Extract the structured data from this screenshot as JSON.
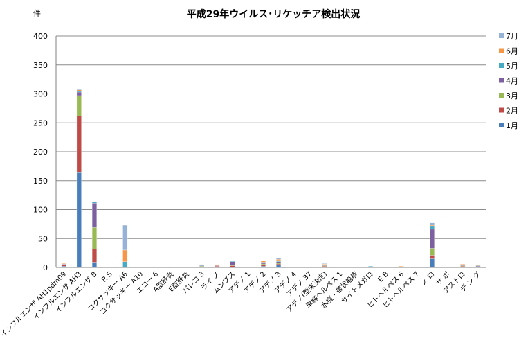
{
  "chart_data": {
    "type": "bar",
    "stacked": true,
    "title": "平成29年ウイルス･リケッチア検出状況",
    "ylabel": "件",
    "ylim": [
      0,
      400
    ],
    "yticks": [
      0,
      50,
      100,
      150,
      200,
      250,
      300,
      350,
      400
    ],
    "grid": true,
    "legend_position": "right",
    "categories": [
      "インフルエンザ AH1pdm09",
      "インフルエンザ AH3",
      "インフルエンザ B",
      "R S",
      "コクサッキー A6",
      "コクサッキー A10",
      "エコー 6",
      "A型肝炎",
      "E型肝炎",
      "パレコ 3",
      "ライ ノ",
      "ムンプス",
      "アデノ 1",
      "アデノ 2",
      "アデノ 3",
      "アデノ 4",
      "アデノ 37",
      "アデノ(型未決定)",
      "単純ヘルペス 1",
      "水痘・帯状疱疹",
      "サイトメガロ",
      "E B",
      "ヒトヘルペス 6",
      "ヒトヘルペス 7",
      "ノ ロ",
      "サ ポ",
      "アストロ",
      "デ ン グ"
    ],
    "series": [
      {
        "name": "1月",
        "color": "#4a7ebb",
        "values": [
          2,
          165,
          9,
          0,
          0,
          0,
          0,
          0,
          0,
          1,
          0,
          1,
          0,
          2,
          4,
          0,
          0,
          1,
          0,
          0,
          0,
          0,
          0,
          0,
          15,
          0,
          1,
          0
        ]
      },
      {
        "name": "2月",
        "color": "#be4b48",
        "values": [
          2,
          97,
          23,
          0,
          0,
          0,
          0,
          0,
          0,
          0,
          2,
          2,
          0,
          2,
          2,
          0,
          0,
          1,
          0,
          0,
          0,
          0,
          0,
          0,
          6,
          0,
          1,
          0
        ]
      },
      {
        "name": "3月",
        "color": "#98b954",
        "values": [
          1,
          35,
          37,
          0,
          0,
          0,
          0,
          0,
          0,
          1,
          0,
          1,
          0,
          2,
          2,
          0,
          0,
          1,
          0,
          0,
          0,
          0,
          0,
          0,
          12,
          0,
          1,
          1
        ]
      },
      {
        "name": "4月",
        "color": "#7d60a0",
        "values": [
          1,
          6,
          42,
          0,
          0,
          0,
          0,
          0,
          0,
          1,
          1,
          6,
          0,
          2,
          2,
          0,
          0,
          1,
          0,
          0,
          0,
          0,
          0,
          0,
          33,
          0,
          1,
          1
        ]
      },
      {
        "name": "5月",
        "color": "#46aac5",
        "values": [
          0,
          2,
          2,
          1,
          10,
          0,
          0,
          0,
          0,
          1,
          0,
          1,
          0,
          1,
          2,
          0,
          0,
          1,
          0,
          0,
          2,
          0,
          1,
          0,
          6,
          0,
          1,
          1
        ]
      },
      {
        "name": "6月",
        "color": "#f79646",
        "values": [
          1,
          2,
          1,
          0,
          20,
          0,
          0,
          0,
          0,
          1,
          2,
          1,
          0,
          2,
          2,
          0,
          0,
          1,
          0,
          0,
          0,
          0,
          1,
          1,
          2,
          0,
          1,
          1
        ]
      },
      {
        "name": "7月",
        "color": "#95b3d7",
        "values": [
          0,
          1,
          0,
          0,
          43,
          0,
          0,
          1,
          0,
          0,
          0,
          0,
          0,
          0,
          2,
          0,
          0,
          1,
          0,
          0,
          0,
          1,
          0,
          0,
          3,
          0,
          0,
          0
        ]
      }
    ]
  }
}
